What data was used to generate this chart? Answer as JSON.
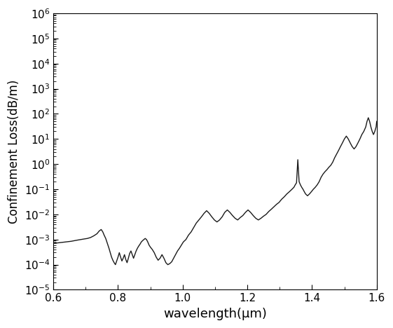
{
  "xlabel": "wavelength(μm)",
  "ylabel": "Confinement Loss(dB/m)",
  "xlim": [
    0.6,
    1.6
  ],
  "ylim_log": [
    -5,
    6
  ],
  "line_color": "#1a1a1a",
  "line_width": 1.0,
  "background_color": "#ffffff",
  "x": [
    0.6,
    0.62,
    0.64,
    0.655,
    0.665,
    0.675,
    0.685,
    0.695,
    0.705,
    0.715,
    0.725,
    0.735,
    0.742,
    0.748,
    0.753,
    0.757,
    0.762,
    0.767,
    0.772,
    0.776,
    0.78,
    0.784,
    0.788,
    0.792,
    0.796,
    0.8,
    0.804,
    0.808,
    0.812,
    0.816,
    0.82,
    0.824,
    0.828,
    0.832,
    0.836,
    0.84,
    0.844,
    0.848,
    0.852,
    0.856,
    0.86,
    0.864,
    0.868,
    0.872,
    0.876,
    0.88,
    0.884,
    0.888,
    0.892,
    0.896,
    0.9,
    0.906,
    0.912,
    0.918,
    0.924,
    0.93,
    0.936,
    0.942,
    0.948,
    0.954,
    0.96,
    0.966,
    0.972,
    0.978,
    0.984,
    0.99,
    0.996,
    1.002,
    1.01,
    1.018,
    1.026,
    1.034,
    1.042,
    1.05,
    1.058,
    1.066,
    1.074,
    1.082,
    1.09,
    1.098,
    1.106,
    1.114,
    1.122,
    1.13,
    1.138,
    1.146,
    1.154,
    1.162,
    1.17,
    1.178,
    1.186,
    1.194,
    1.202,
    1.21,
    1.218,
    1.226,
    1.234,
    1.242,
    1.25,
    1.258,
    1.266,
    1.274,
    1.282,
    1.29,
    1.298,
    1.306,
    1.314,
    1.322,
    1.33,
    1.338,
    1.344,
    1.348,
    1.352,
    1.356,
    1.36,
    1.364,
    1.368,
    1.372,
    1.376,
    1.38,
    1.386,
    1.392,
    1.398,
    1.404,
    1.41,
    1.416,
    1.422,
    1.428,
    1.434,
    1.44,
    1.446,
    1.452,
    1.458,
    1.464,
    1.47,
    1.476,
    1.482,
    1.488,
    1.494,
    1.5,
    1.506,
    1.512,
    1.518,
    1.524,
    1.53,
    1.536,
    1.542,
    1.548,
    1.554,
    1.56,
    1.566,
    1.57,
    1.574,
    1.578,
    1.582,
    1.586,
    1.59,
    1.594,
    1.598,
    1.6
  ],
  "y": [
    0.0007,
    0.00075,
    0.0008,
    0.00085,
    0.0009,
    0.00095,
    0.001,
    0.00105,
    0.0011,
    0.0012,
    0.0014,
    0.0017,
    0.0022,
    0.0025,
    0.002,
    0.0015,
    0.0011,
    0.0007,
    0.00045,
    0.0003,
    0.0002,
    0.00015,
    0.00012,
    0.0001,
    0.00014,
    0.0002,
    0.0003,
    0.0002,
    0.00014,
    0.00018,
    0.00025,
    0.00016,
    0.00012,
    0.00018,
    0.00028,
    0.00035,
    0.00025,
    0.00018,
    0.00025,
    0.00035,
    0.00045,
    0.00055,
    0.00065,
    0.0008,
    0.0009,
    0.001,
    0.0011,
    0.001,
    0.0008,
    0.0006,
    0.0005,
    0.0004,
    0.0003,
    0.0002,
    0.00015,
    0.00018,
    0.00025,
    0.00018,
    0.00012,
    0.0001,
    0.00011,
    0.00013,
    0.00018,
    0.00025,
    0.00035,
    0.00045,
    0.0006,
    0.0008,
    0.001,
    0.0015,
    0.002,
    0.003,
    0.0045,
    0.006,
    0.008,
    0.011,
    0.014,
    0.011,
    0.008,
    0.006,
    0.005,
    0.006,
    0.008,
    0.012,
    0.015,
    0.012,
    0.009,
    0.007,
    0.006,
    0.0075,
    0.009,
    0.012,
    0.015,
    0.012,
    0.009,
    0.007,
    0.006,
    0.007,
    0.0085,
    0.01,
    0.013,
    0.016,
    0.02,
    0.025,
    0.03,
    0.04,
    0.05,
    0.065,
    0.08,
    0.1,
    0.12,
    0.15,
    0.18,
    1.5,
    0.2,
    0.15,
    0.12,
    0.1,
    0.08,
    0.065,
    0.055,
    0.065,
    0.08,
    0.1,
    0.12,
    0.15,
    0.2,
    0.3,
    0.4,
    0.5,
    0.6,
    0.75,
    0.9,
    1.2,
    1.8,
    2.5,
    3.5,
    5.0,
    7.0,
    10.0,
    13.0,
    10.0,
    7.0,
    5.0,
    4.0,
    5.0,
    7.0,
    10.0,
    15.0,
    20.0,
    30.0,
    50.0,
    70.0,
    50.0,
    30.0,
    20.0,
    15.0,
    20.0,
    30.0,
    50.0
  ]
}
